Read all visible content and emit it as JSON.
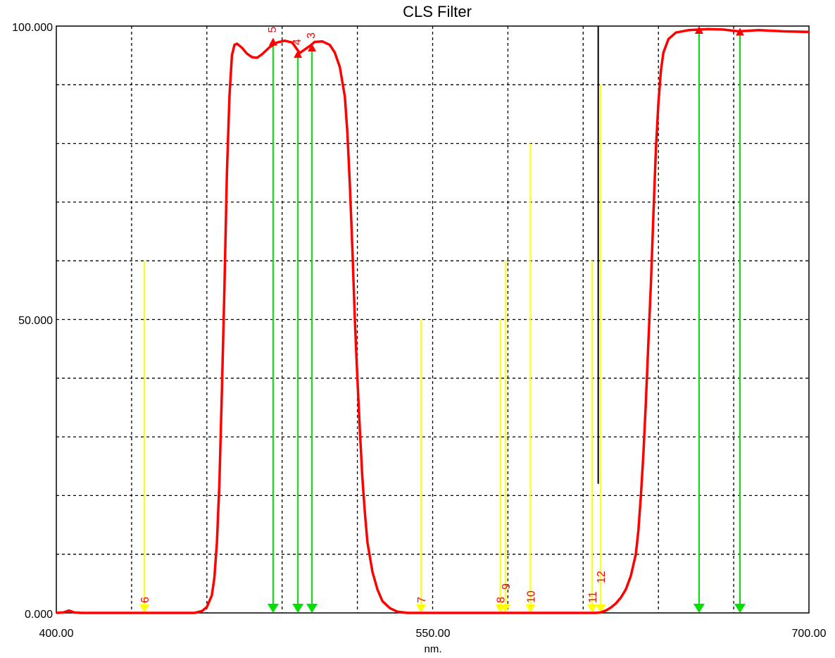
{
  "chart_data": {
    "type": "line",
    "title": "CLS Filter",
    "xlabel": "nm.",
    "ylabel": "",
    "xlim": [
      400,
      700
    ],
    "ylim": [
      0,
      100
    ],
    "x_tick_labels": [
      "400.00",
      "550.00",
      "700.00"
    ],
    "y_tick_labels": [
      "100.000",
      "50.000",
      "0.000"
    ],
    "grid": true,
    "grid_x_step": 30,
    "grid_y_step": 10,
    "series": [
      {
        "color": "#ff0000",
        "points": [
          [
            400,
            0
          ],
          [
            403,
            0.1
          ],
          [
            405,
            0.4
          ],
          [
            407,
            0.1
          ],
          [
            410,
            0
          ],
          [
            455,
            0
          ],
          [
            458,
            0.3
          ],
          [
            460,
            1
          ],
          [
            462,
            3
          ],
          [
            463,
            6
          ],
          [
            464,
            12
          ],
          [
            465,
            22
          ],
          [
            466,
            38
          ],
          [
            467,
            55
          ],
          [
            468,
            75
          ],
          [
            469,
            88
          ],
          [
            470,
            95
          ],
          [
            471,
            96.8
          ],
          [
            472,
            97
          ],
          [
            474,
            96.3
          ],
          [
            476,
            95.3
          ],
          [
            478,
            94.7
          ],
          [
            480,
            94.6
          ],
          [
            482,
            95.2
          ],
          [
            485,
            96.4
          ],
          [
            488,
            97.2
          ],
          [
            491,
            97.5
          ],
          [
            494,
            97.2
          ],
          [
            496,
            96
          ],
          [
            497,
            95.4
          ],
          [
            499,
            96
          ],
          [
            501,
            96.6
          ],
          [
            503,
            97.3
          ],
          [
            506,
            97.4
          ],
          [
            509,
            96.8
          ],
          [
            511,
            95.5
          ],
          [
            513,
            93
          ],
          [
            515,
            88
          ],
          [
            516,
            82
          ],
          [
            517,
            73
          ],
          [
            518,
            62
          ],
          [
            519,
            50
          ],
          [
            520,
            40
          ],
          [
            521,
            31
          ],
          [
            522,
            23
          ],
          [
            523,
            17
          ],
          [
            524,
            12
          ],
          [
            526,
            7
          ],
          [
            528,
            4
          ],
          [
            530,
            2
          ],
          [
            533,
            0.8
          ],
          [
            536,
            0.2
          ],
          [
            540,
            0
          ],
          [
            615,
            0
          ],
          [
            617,
            0.1
          ],
          [
            619,
            0.4
          ],
          [
            621,
            0.9
          ],
          [
            623,
            1.6
          ],
          [
            625,
            2.6
          ],
          [
            627,
            4
          ],
          [
            629,
            6.3
          ],
          [
            631,
            10
          ],
          [
            632,
            14
          ],
          [
            633,
            20
          ],
          [
            634,
            27
          ],
          [
            635,
            36
          ],
          [
            636,
            46
          ],
          [
            637,
            56
          ],
          [
            638,
            68
          ],
          [
            639,
            79
          ],
          [
            640,
            87
          ],
          [
            641,
            92.5
          ],
          [
            642,
            95.5
          ],
          [
            644,
            97.8
          ],
          [
            647,
            98.9
          ],
          [
            652,
            99.3
          ],
          [
            660,
            99.5
          ],
          [
            666,
            99.4
          ],
          [
            672,
            99.1
          ],
          [
            680,
            99.3
          ],
          [
            690,
            99.1
          ],
          [
            700,
            99
          ]
        ]
      }
    ],
    "black_line": {
      "x": 616,
      "y": [
        22,
        100
      ]
    },
    "green_markers": [
      {
        "x": 486.4,
        "y": 97.4,
        "label": "5"
      },
      {
        "x": 496.3,
        "y": 95.3,
        "label": "4"
      },
      {
        "x": 501.9,
        "y": 96.4,
        "label": "3"
      },
      {
        "x": 656.2,
        "y": 99.4,
        "label": ""
      },
      {
        "x": 672.5,
        "y": 99.1,
        "label": ""
      }
    ],
    "yellow_markers": [
      {
        "x": 435.1,
        "top": 60,
        "label": "6"
      },
      {
        "x": 545.4,
        "top": 50,
        "label": "7"
      },
      {
        "x": 577,
        "top": 50,
        "label": "8"
      },
      {
        "x": 579,
        "top": 60,
        "label": "9"
      },
      {
        "x": 589,
        "top": 80,
        "label": "10"
      },
      {
        "x": 613.6,
        "top": 60,
        "label": "11"
      },
      {
        "x": 617,
        "top": 90,
        "label": "12"
      }
    ],
    "colors": {
      "curve": "#ff0000",
      "green": "#00e000",
      "yellow": "#ffff00",
      "label": "#ff0000"
    }
  }
}
